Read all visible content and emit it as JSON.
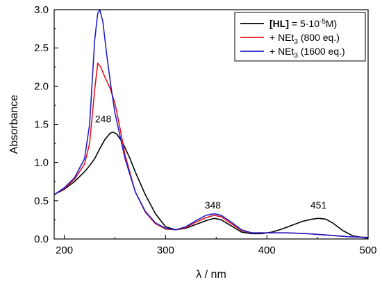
{
  "chart_data": {
    "type": "line",
    "xlabel": "λ / nm",
    "ylabel": "Absorbance",
    "xlim": [
      190,
      500
    ],
    "ylim": [
      0.0,
      3.0
    ],
    "x_ticks": [
      200,
      300,
      400,
      500
    ],
    "y_ticks": [
      0.0,
      0.5,
      1.0,
      1.5,
      2.0,
      2.5,
      3.0
    ],
    "x_tick_labels": [
      "200",
      "300",
      "400",
      "500"
    ],
    "y_tick_labels": [
      "0.0",
      "0.5",
      "1.0",
      "1.5",
      "2.0",
      "2.5",
      "3.0"
    ],
    "grid": false,
    "legend_position": "top-right",
    "annotations": [
      {
        "text": "248",
        "x": 248,
        "y": 1.4
      },
      {
        "text": "348",
        "x": 348,
        "y": 0.27
      },
      {
        "text": "451",
        "x": 451,
        "y": 0.27
      }
    ],
    "series": [
      {
        "legend_bold": "[HL]",
        "legend_rest": " = 5·10",
        "legend_sup": "-5",
        "legend_tail": "M)",
        "color": "#000000",
        "x": [
          190,
          200,
          210,
          220,
          225,
          230,
          235,
          240,
          245,
          248,
          252,
          258,
          265,
          270,
          280,
          290,
          300,
          310,
          320,
          330,
          340,
          348,
          355,
          365,
          375,
          385,
          395,
          405,
          415,
          425,
          435,
          445,
          451,
          458,
          465,
          475,
          485,
          500
        ],
        "y": [
          0.58,
          0.65,
          0.75,
          0.88,
          0.96,
          1.05,
          1.18,
          1.3,
          1.38,
          1.4,
          1.37,
          1.25,
          1.05,
          0.88,
          0.58,
          0.33,
          0.16,
          0.12,
          0.14,
          0.19,
          0.24,
          0.27,
          0.25,
          0.17,
          0.09,
          0.07,
          0.07,
          0.09,
          0.13,
          0.18,
          0.23,
          0.26,
          0.27,
          0.26,
          0.21,
          0.11,
          0.04,
          0.01
        ]
      },
      {
        "legend_label": "+ NEt",
        "legend_sub": "3",
        "legend_tail": " (800 eq.)",
        "color": "#e8141c",
        "x": [
          190,
          200,
          210,
          220,
          225,
          230,
          233,
          236,
          240,
          245,
          250,
          255,
          260,
          270,
          280,
          290,
          300,
          310,
          320,
          330,
          340,
          348,
          355,
          365,
          375,
          385,
          400,
          420,
          440,
          460,
          480,
          500
        ],
        "y": [
          0.58,
          0.66,
          0.78,
          0.98,
          1.25,
          1.95,
          2.3,
          2.25,
          2.12,
          1.98,
          1.78,
          1.45,
          1.1,
          0.62,
          0.35,
          0.2,
          0.13,
          0.12,
          0.15,
          0.22,
          0.28,
          0.31,
          0.29,
          0.2,
          0.11,
          0.08,
          0.08,
          0.08,
          0.07,
          0.05,
          0.03,
          0.02
        ]
      },
      {
        "legend_label": "+ NEt",
        "legend_sub": "3",
        "legend_tail": " (1600 eq.)",
        "color": "#1f1fcc",
        "x": [
          190,
          200,
          210,
          220,
          225,
          230,
          233,
          235,
          238,
          242,
          246,
          250,
          255,
          260,
          270,
          280,
          290,
          300,
          310,
          320,
          330,
          340,
          348,
          355,
          365,
          375,
          385,
          400,
          420,
          440,
          460,
          480,
          500
        ],
        "y": [
          0.58,
          0.67,
          0.8,
          1.05,
          1.5,
          2.6,
          2.95,
          3.0,
          2.85,
          2.4,
          2.0,
          1.65,
          1.35,
          1.05,
          0.62,
          0.36,
          0.21,
          0.14,
          0.12,
          0.16,
          0.24,
          0.31,
          0.33,
          0.31,
          0.22,
          0.12,
          0.08,
          0.08,
          0.08,
          0.07,
          0.05,
          0.03,
          0.02
        ]
      }
    ]
  }
}
